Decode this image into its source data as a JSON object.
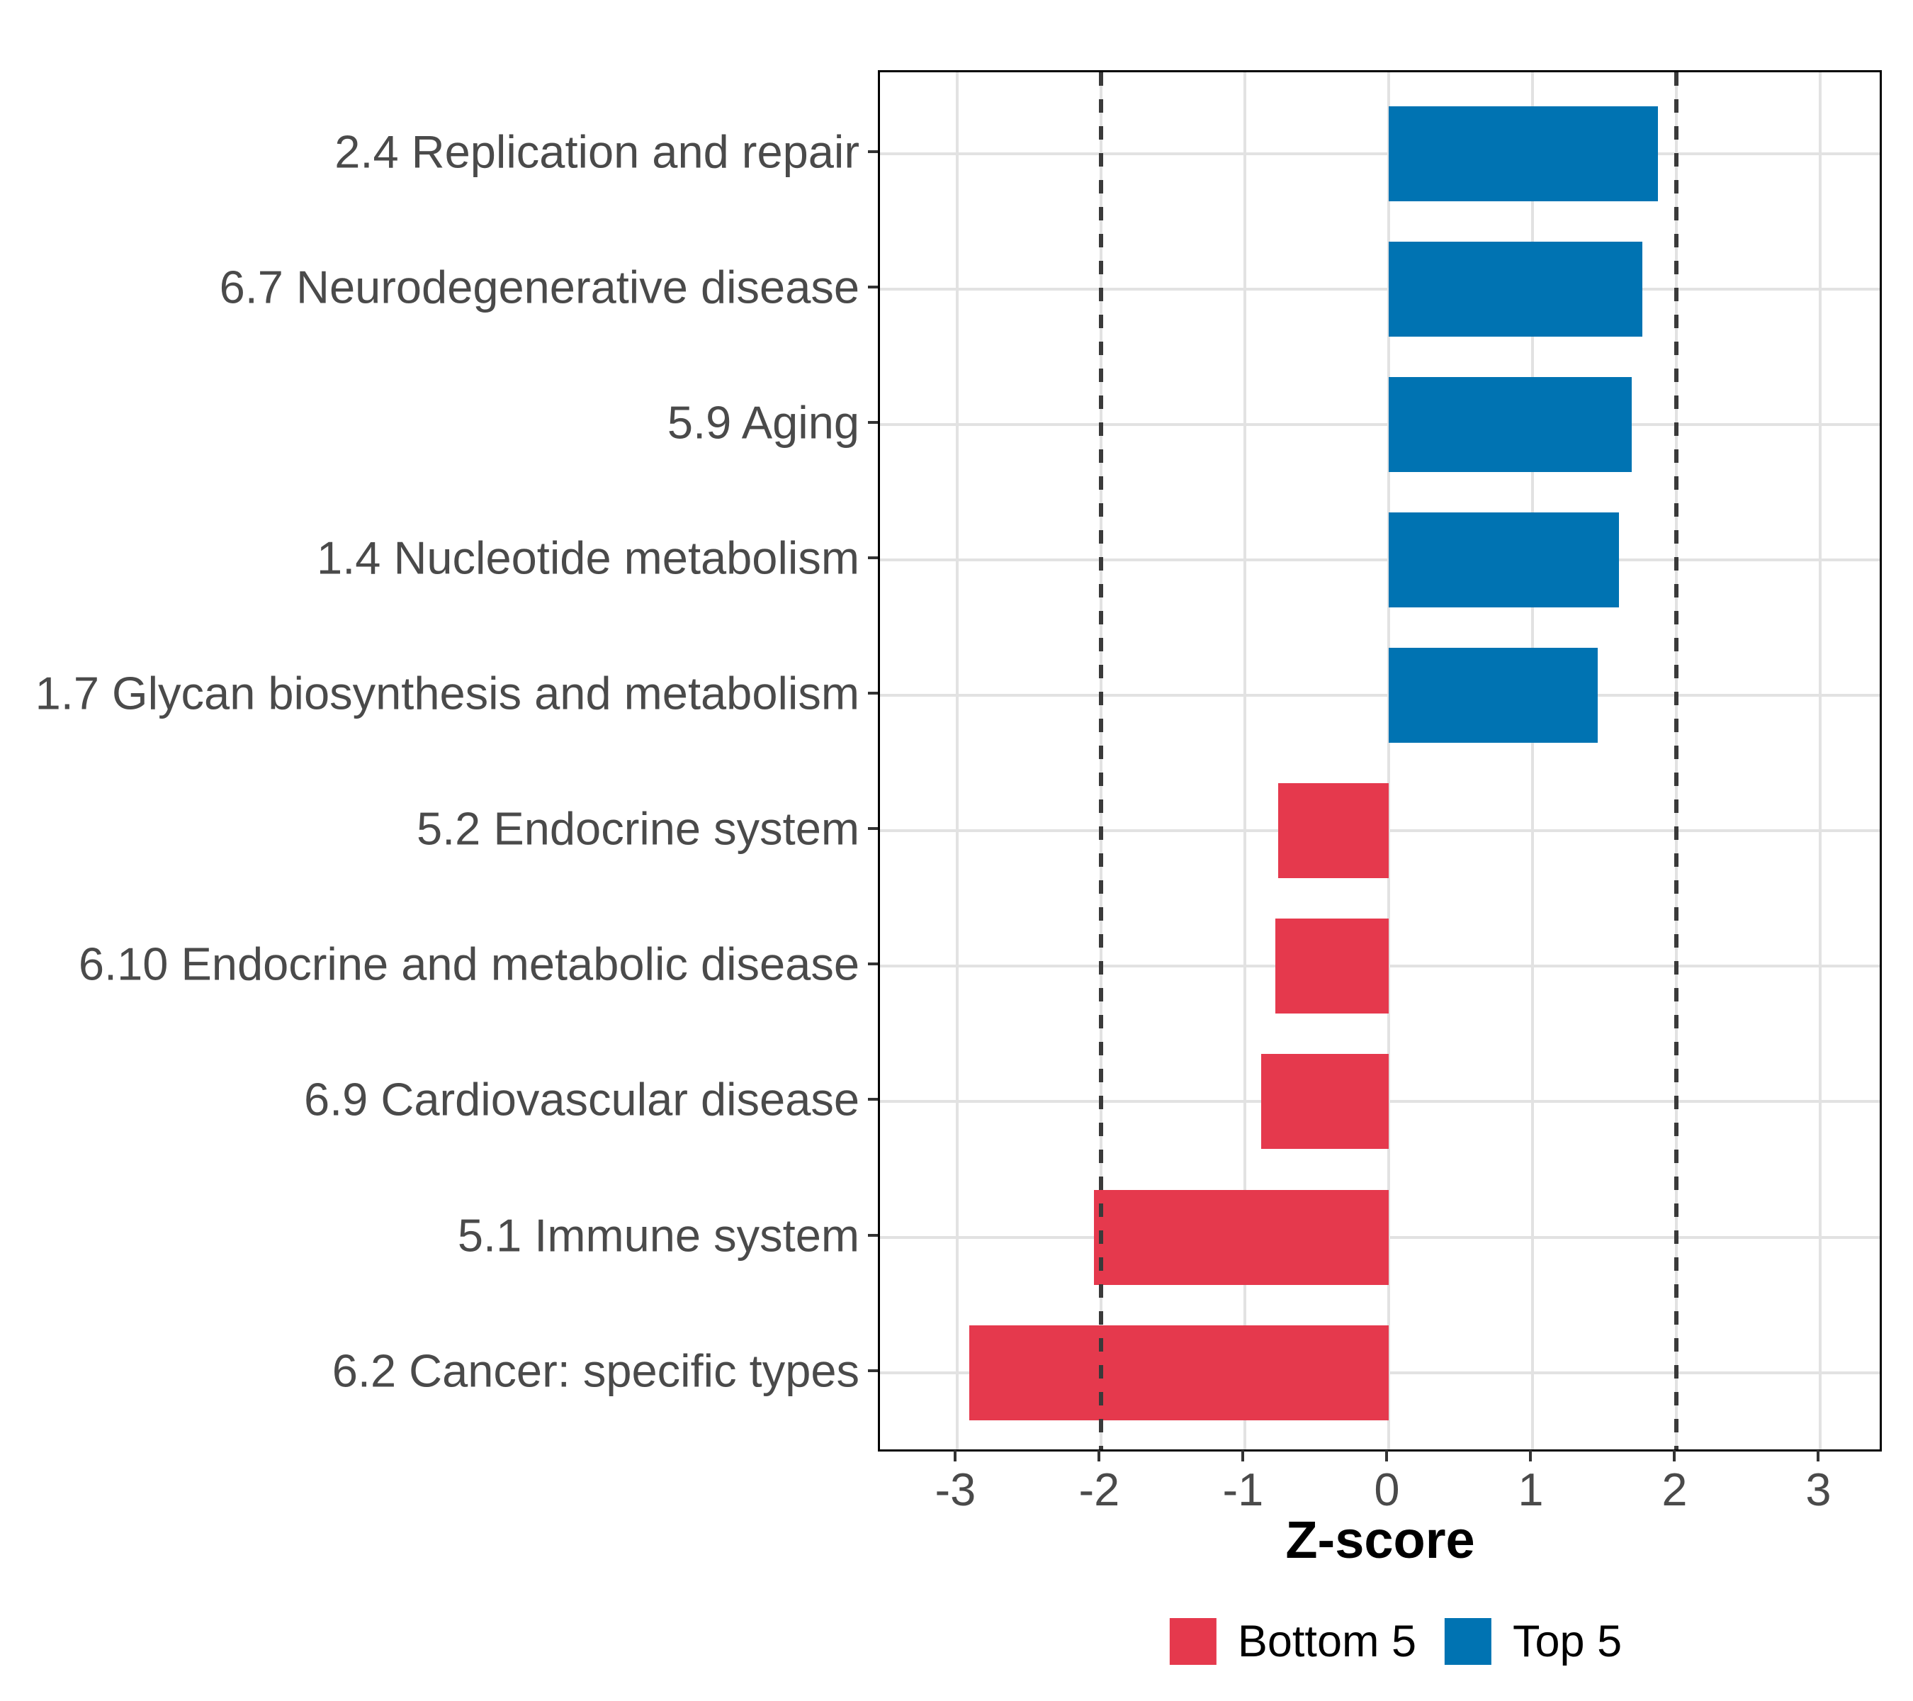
{
  "chart_data": {
    "type": "bar",
    "orientation": "horizontal",
    "title": "",
    "xlabel": "Z-score",
    "ylabel": "",
    "categories": [
      "2.4 Replication and repair",
      "6.7 Neurodegenerative disease",
      "5.9 Aging",
      "1.4 Nucleotide metabolism",
      "1.7 Glycan biosynthesis and metabolism",
      "5.2 Endocrine system",
      "6.10 Endocrine and metabolic disease",
      "6.9 Cardiovascular disease",
      "5.1 Immune system",
      "6.2 Cancer: specific types"
    ],
    "bars": [
      {
        "category": "2.4 Replication and repair",
        "value": 1.87,
        "group": "Top 5"
      },
      {
        "category": "6.7 Neurodegenerative disease",
        "value": 1.76,
        "group": "Top 5"
      },
      {
        "category": "5.9 Aging",
        "value": 1.69,
        "group": "Top 5"
      },
      {
        "category": "1.4 Nucleotide metabolism",
        "value": 1.6,
        "group": "Top 5"
      },
      {
        "category": "1.7 Glycan biosynthesis and metabolism",
        "value": 1.45,
        "group": "Top 5"
      },
      {
        "category": "5.2 Endocrine system",
        "value": -0.77,
        "group": "Bottom 5"
      },
      {
        "category": "6.10 Endocrine and metabolic disease",
        "value": -0.79,
        "group": "Bottom 5"
      },
      {
        "category": "6.9 Cardiovascular disease",
        "value": -0.89,
        "group": "Bottom 5"
      },
      {
        "category": "5.1 Immune system",
        "value": -2.05,
        "group": "Bottom 5"
      },
      {
        "category": "6.2 Cancer: specific types",
        "value": -2.92,
        "group": "Bottom 5"
      }
    ],
    "x_ticks": [
      "-3",
      "-2",
      "-1",
      "0",
      "1",
      "2",
      "3"
    ],
    "x_tick_values": [
      -3,
      -2,
      -1,
      0,
      1,
      2,
      3
    ],
    "xlim": [
      -3.54,
      3.44
    ],
    "reference_lines": {
      "values": [
        -2,
        2
      ],
      "style": "dashed",
      "color": "#3A3A3A"
    },
    "grid": true,
    "legend_position": "bottom",
    "legend": [
      {
        "label": "Bottom 5",
        "color": "#E5394D"
      },
      {
        "label": "Top 5",
        "color": "#0073B2"
      }
    ],
    "colors": {
      "top5_bar": "#0073B2",
      "bottom5_bar": "#E5394D",
      "gridline": "#E2E2E2",
      "reference_line": "#3A3A3A",
      "axis_text": "#4A4A4A",
      "axis_title": "#000000",
      "panel_border": "#000000"
    }
  }
}
